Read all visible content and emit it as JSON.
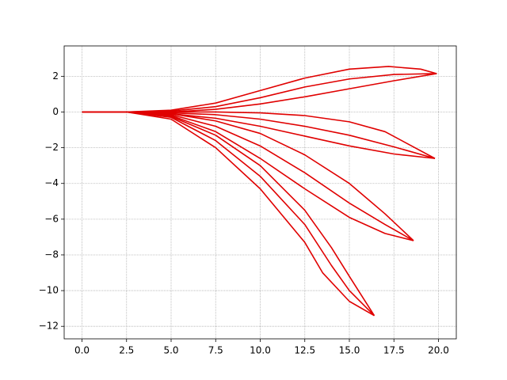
{
  "chart_data": {
    "type": "line",
    "xlim": [
      -1.0,
      21.0
    ],
    "ylim": [
      -12.7,
      3.7
    ],
    "xticks": [
      {
        "value": 0,
        "label": "0.0"
      },
      {
        "value": 2.5,
        "label": "2.5"
      },
      {
        "value": 5,
        "label": "5.0"
      },
      {
        "value": 7.5,
        "label": "7.5"
      },
      {
        "value": 10,
        "label": "10.0"
      },
      {
        "value": 12.5,
        "label": "12.5"
      },
      {
        "value": 15,
        "label": "15.0"
      },
      {
        "value": 17.5,
        "label": "17.5"
      },
      {
        "value": 20,
        "label": "20.0"
      }
    ],
    "yticks": [
      {
        "value": -12,
        "label": "−12"
      },
      {
        "value": -10,
        "label": "−10"
      },
      {
        "value": -8,
        "label": "−8"
      },
      {
        "value": -6,
        "label": "−6"
      },
      {
        "value": -4,
        "label": "−4"
      },
      {
        "value": -2,
        "label": "−2"
      },
      0,
      2
    ],
    "grid": true,
    "series": [
      {
        "color": "#e00000",
        "x": [
          0,
          2.5,
          5,
          7.5,
          10,
          12.5,
          15,
          17.2,
          19,
          19.9
        ],
        "values": [
          0,
          0,
          0.1,
          0.5,
          1.2,
          1.9,
          2.4,
          2.55,
          2.4,
          2.15
        ]
      },
      {
        "color": "#e00000",
        "x": [
          0,
          2.5,
          5,
          7.5,
          10,
          12.5,
          15,
          17.5,
          19.9
        ],
        "values": [
          0,
          0,
          0.05,
          0.3,
          0.8,
          1.4,
          1.85,
          2.1,
          2.15
        ]
      },
      {
        "color": "#e00000",
        "x": [
          0,
          2.5,
          5,
          7.5,
          10,
          12.5,
          15,
          17.5,
          19.9
        ],
        "values": [
          0,
          0,
          0,
          0.15,
          0.45,
          0.85,
          1.3,
          1.75,
          2.15
        ]
      },
      {
        "color": "#e00000",
        "x": [
          0,
          2.5,
          5,
          7.5,
          10,
          12.5,
          15,
          17,
          19.8
        ],
        "values": [
          0,
          0,
          0,
          0,
          -0.05,
          -0.2,
          -0.55,
          -1.1,
          -2.6
        ]
      },
      {
        "color": "#e00000",
        "x": [
          0,
          2.5,
          5,
          7.5,
          10,
          12.5,
          15,
          17.5,
          19.8
        ],
        "values": [
          0,
          0,
          -0.05,
          -0.15,
          -0.4,
          -0.8,
          -1.3,
          -1.95,
          -2.6
        ]
      },
      {
        "color": "#e00000",
        "x": [
          0,
          2.5,
          5,
          7.5,
          10,
          12.5,
          15,
          17.5,
          19.8
        ],
        "values": [
          0,
          0,
          -0.1,
          -0.35,
          -0.8,
          -1.35,
          -1.9,
          -2.35,
          -2.6
        ]
      },
      {
        "color": "#e00000",
        "x": [
          0,
          2.5,
          5,
          7.5,
          10,
          12.5,
          15,
          17,
          18.6
        ],
        "values": [
          0,
          0,
          -0.1,
          -0.5,
          -1.2,
          -2.4,
          -4.0,
          -5.7,
          -7.2
        ]
      },
      {
        "color": "#e00000",
        "x": [
          0,
          2.5,
          5,
          7.5,
          10,
          12.5,
          15,
          17,
          18.6
        ],
        "values": [
          0,
          0,
          -0.15,
          -0.8,
          -1.9,
          -3.4,
          -5.1,
          -6.3,
          -7.2
        ]
      },
      {
        "color": "#e00000",
        "x": [
          0,
          2.5,
          5,
          7.5,
          10,
          12.5,
          15,
          17,
          18.6
        ],
        "values": [
          0,
          0,
          -0.2,
          -1.1,
          -2.6,
          -4.3,
          -5.9,
          -6.8,
          -7.2
        ]
      },
      {
        "color": "#e00000",
        "x": [
          0,
          2.5,
          5,
          7.5,
          10,
          12.5,
          14,
          15,
          16.4
        ],
        "values": [
          0,
          0,
          -0.25,
          -1.3,
          -3.0,
          -5.5,
          -7.6,
          -9.2,
          -11.4
        ]
      },
      {
        "color": "#e00000",
        "x": [
          0,
          2.5,
          5,
          7.5,
          10,
          12.5,
          14,
          15,
          16.4
        ],
        "values": [
          0,
          0,
          -0.3,
          -1.6,
          -3.6,
          -6.3,
          -8.6,
          -10.0,
          -11.4
        ]
      },
      {
        "color": "#e00000",
        "x": [
          0,
          2.5,
          5,
          7.5,
          10,
          12.5,
          13.5,
          15,
          16.4
        ],
        "values": [
          0,
          0,
          -0.4,
          -2.0,
          -4.3,
          -7.3,
          -9.0,
          -10.6,
          -11.4
        ]
      }
    ]
  }
}
